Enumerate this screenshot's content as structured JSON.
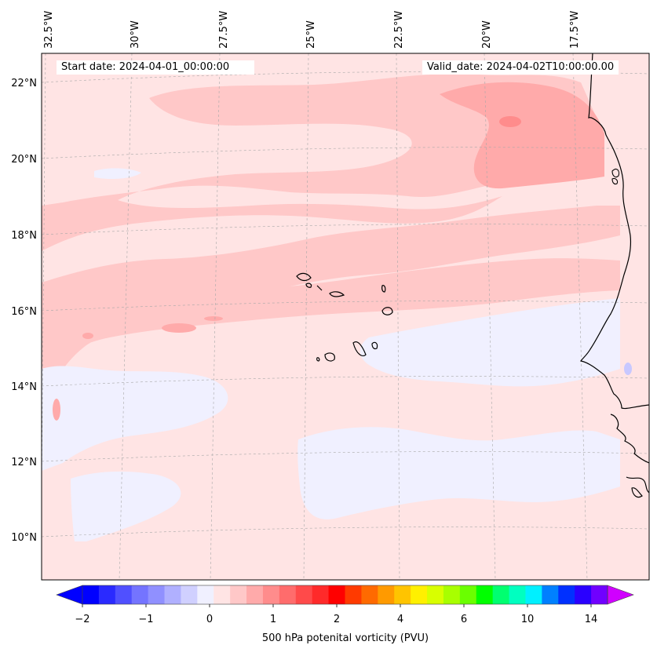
{
  "map": {
    "title_start": "Start date: 2024-04-01_00:00:00",
    "title_valid": "Valid_date: 2024-04-02T10:00:00.00",
    "lon_labels": [
      "32.5°W",
      "30°W",
      "27.5°W",
      "25°W",
      "22.5°W",
      "20°W",
      "17.5°W"
    ],
    "lat_labels": [
      "22°N",
      "20°N",
      "18°N",
      "16°N",
      "14°N",
      "12°N",
      "10°N"
    ],
    "extent": {
      "lon_min": -32.5,
      "lon_max": -15.8,
      "lat_min": 8.9,
      "lat_max": 22.8
    },
    "background_color": "#ffe4e4"
  },
  "colorbar": {
    "label": "500 hPa potenital vorticity (PVU)",
    "ticks": [
      "−2",
      "−1",
      "0",
      "1",
      "2",
      "4",
      "6",
      "10",
      "14"
    ],
    "colors": [
      "#0000ff",
      "#2a2aff",
      "#5050ff",
      "#7474ff",
      "#9090ff",
      "#b0b0ff",
      "#d0d0ff",
      "#f0f0ff",
      "#ffe4e4",
      "#ffc8c8",
      "#ffaaaa",
      "#ff8c8c",
      "#ff6c6c",
      "#ff4a4a",
      "#ff2a2a",
      "#ff0000",
      "#ff3a00",
      "#ff6a00",
      "#ff9a00",
      "#ffc400",
      "#fff000",
      "#d8ff00",
      "#a8ff00",
      "#6aff00",
      "#00ff00",
      "#00ff70",
      "#00ffc0",
      "#00f0ff",
      "#0080ff",
      "#0030ff",
      "#2a00ff",
      "#7000ff"
    ],
    "extend_low": "#0000ff",
    "extend_high": "#d000ff"
  }
}
